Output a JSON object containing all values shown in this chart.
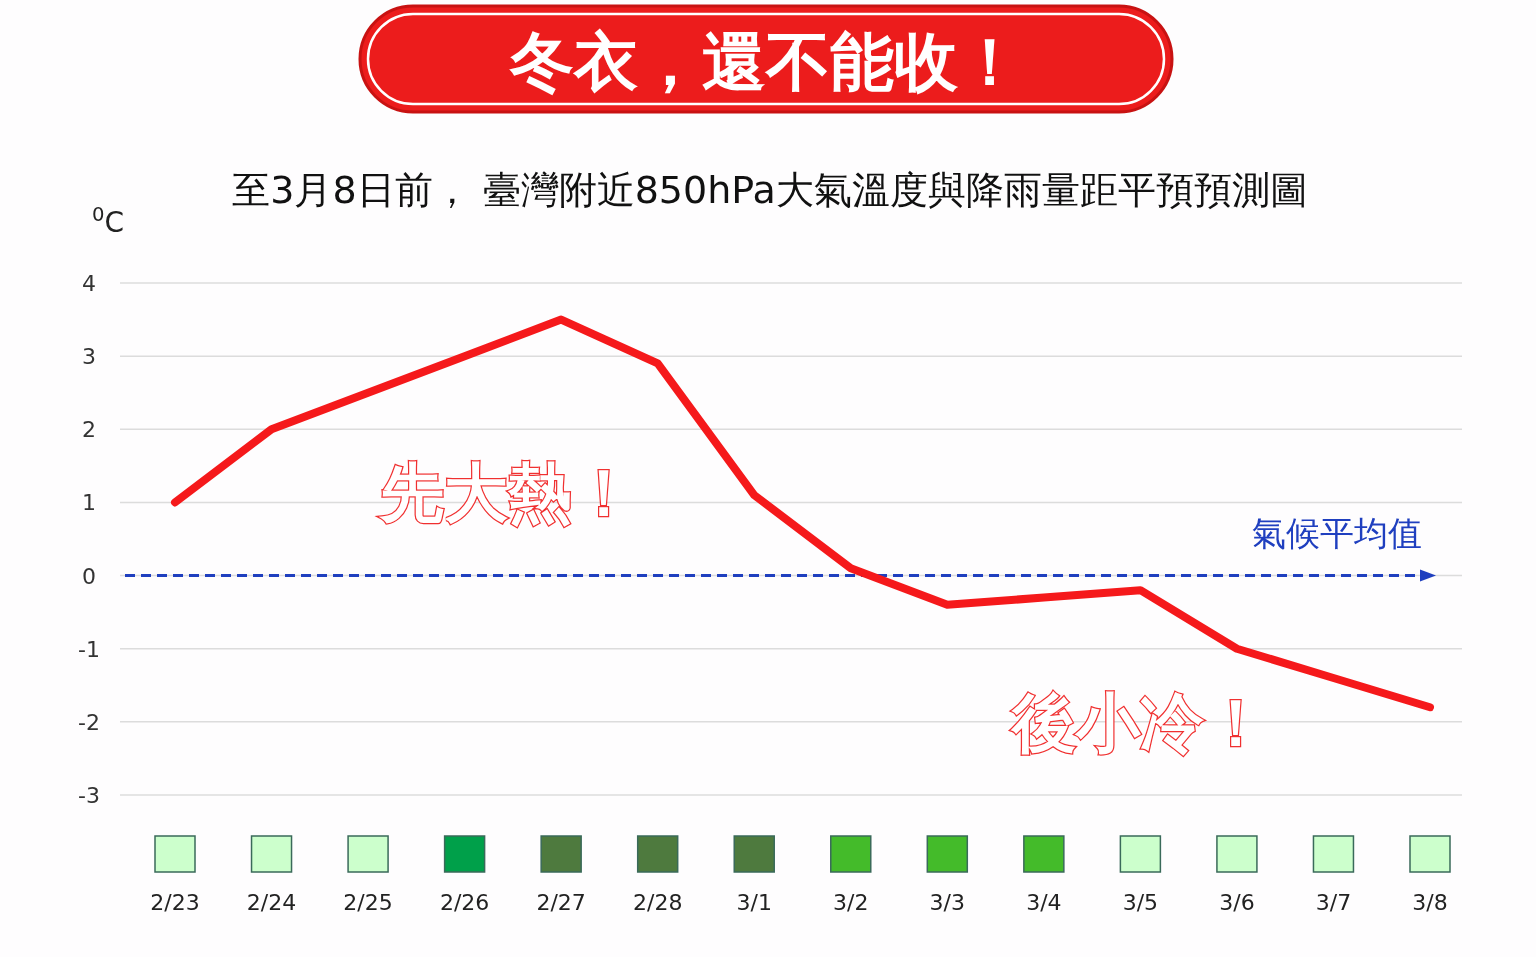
{
  "chart_data": [
    {
      "type": "line",
      "title": "冬衣，還不能收！",
      "subtitle": "至3月8日前， 臺灣附近850hPa大氣溫度與降雨量距平預預測圖",
      "ylabel": "$^{0}$C",
      "categories": [
        "2/23",
        "2/24",
        "2/25",
        "2/26",
        "2/27",
        "2/28",
        "3/1",
        "3/2",
        "3/3",
        "3/4",
        "3/5",
        "3/6",
        "3/7",
        "3/8"
      ],
      "series": [
        {
          "color": "#f5191b",
          "values": [
            1.0,
            2.0,
            2.5,
            3.0,
            3.5,
            2.9,
            1.1,
            0.1,
            -0.4,
            -0.3,
            -0.2,
            -1.0,
            -1.4,
            -1.8
          ]
        }
      ],
      "ylim": [
        -3,
        4
      ],
      "yticks": [
        -3,
        -2,
        -1,
        0,
        1,
        2,
        3,
        4
      ],
      "grid": "y",
      "marker": "none",
      "line_style": "solid",
      "ref_lines": [
        {
          "axis": "y",
          "value": 0,
          "label": "氣候平均值",
          "color": "#1f3fbf",
          "line_style": "dashed"
        }
      ],
      "annotations": [
        "先大熱！",
        "後小冷！"
      ]
    },
    {
      "type": "other",
      "categories": [
        null,
        null,
        null,
        null,
        null,
        null,
        null,
        null,
        null,
        null,
        null,
        null,
        null,
        null
      ],
      "colors": [
        "#ccffcc",
        "#ccffcc",
        "#ccffcc",
        "#00a04a",
        "#4e7a3e",
        "#4e7a3e",
        "#4e7a3e",
        "#44bb2a",
        "#44bb2a",
        "#44bb2a",
        "#ccffcc",
        "#ccffcc",
        "#ccffcc",
        "#ccffcc"
      ]
    }
  ]
}
